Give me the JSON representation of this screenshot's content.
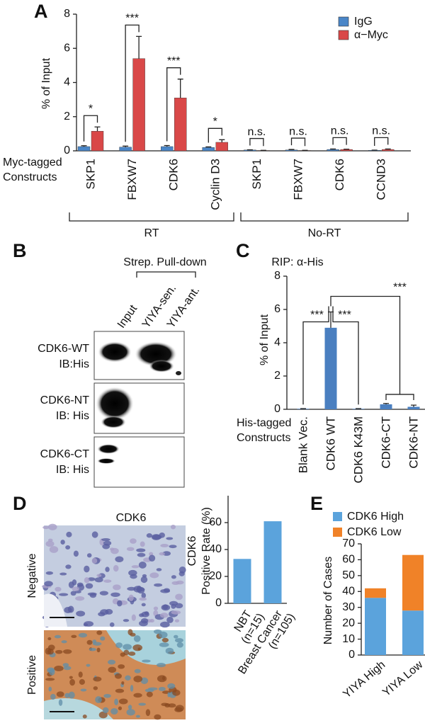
{
  "chart_data": [
    {
      "panel": "A",
      "type": "bar",
      "y_label": "% of Input",
      "x_label": [
        "Myc-tagged",
        "Constructs"
      ],
      "categories": [
        "SKP1",
        "FBXW7",
        "CDK6",
        "Cyclin D3",
        "SKP1",
        "FBXW7",
        "CDK6",
        "CCND3"
      ],
      "series": [
        {
          "name": "IgG",
          "color": "#4a86c8",
          "values": [
            0.25,
            0.22,
            0.25,
            0.2,
            0.05,
            0.05,
            0.08,
            0.03
          ],
          "errors": [
            0.05,
            0.06,
            0.06,
            0.03,
            0.01,
            0.03,
            0.03,
            0.01
          ]
        },
        {
          "name": "α−Myc",
          "color": "#d94848",
          "values": [
            1.15,
            5.4,
            3.1,
            0.5,
            0.02,
            0.02,
            0.08,
            0.08
          ],
          "errors": [
            0.25,
            1.3,
            1.1,
            0.15,
            0.01,
            0.01,
            0.02,
            0.03
          ]
        }
      ],
      "significance": [
        "*",
        "***",
        "***",
        "*",
        "n.s.",
        "n.s.",
        "n.s.",
        "n.s."
      ],
      "groups": [
        "RT",
        "No-RT"
      ],
      "ylim": [
        0,
        8
      ],
      "yticks": [
        0,
        2,
        4,
        6,
        8
      ]
    },
    {
      "panel": "C",
      "type": "bar",
      "title": "RIP: α-His",
      "y_label": "% of Input",
      "x_label": [
        "His-tagged",
        "Constructs"
      ],
      "categories": [
        "Blank Vec.",
        "CDK6 WT",
        "CDK6 K43M",
        "CDK6-CT",
        "CDK6-NT"
      ],
      "values": [
        0.03,
        4.9,
        0.03,
        0.3,
        0.15
      ],
      "errors": [
        0.01,
        0.95,
        0.01,
        0.05,
        0.1
      ],
      "color": "#4a7fc0",
      "significance": [
        "***",
        "***",
        "***"
      ],
      "ylim": [
        0,
        8
      ],
      "yticks": [
        0,
        2,
        4,
        6,
        8
      ]
    },
    {
      "panel": "D",
      "type": "bar",
      "y_label": [
        "CDK6",
        "Positive Rate (%)"
      ],
      "categories": [
        [
          "NBT",
          "(n=15)"
        ],
        [
          "Breast Cancer",
          "(n=105)"
        ]
      ],
      "values": [
        33,
        61
      ],
      "color": "#5ba3dc",
      "ylim": [
        0,
        80
      ],
      "yticks": [
        0,
        20,
        40,
        60
      ]
    },
    {
      "panel": "E",
      "type": "bar",
      "stacked": true,
      "y_label": "Number of Cases",
      "categories": [
        "YIYA High",
        "YIYA Low"
      ],
      "series": [
        {
          "name": "CDK6 High",
          "color": "#5ba3dc",
          "values": [
            36,
            28
          ]
        },
        {
          "name": "CDK6 Low",
          "color": "#f08228",
          "values": [
            6,
            35
          ]
        }
      ],
      "ylim": [
        0,
        70
      ],
      "yticks": [
        0,
        10,
        20,
        30,
        40,
        50,
        60,
        70
      ]
    }
  ],
  "blot": {
    "panel": "B",
    "header": "Strep. Pull-down",
    "lanes": [
      "Input",
      "YIYA-sen.",
      "YIYA-ant."
    ],
    "rows": [
      [
        "CDK6-WT",
        "IB:His"
      ],
      [
        "CDK6-NT",
        "IB: His"
      ],
      [
        "CDK6-CT",
        "IB: His"
      ]
    ]
  },
  "histology": {
    "title": "CDK6",
    "rows": [
      "Negative",
      "Positive"
    ]
  }
}
